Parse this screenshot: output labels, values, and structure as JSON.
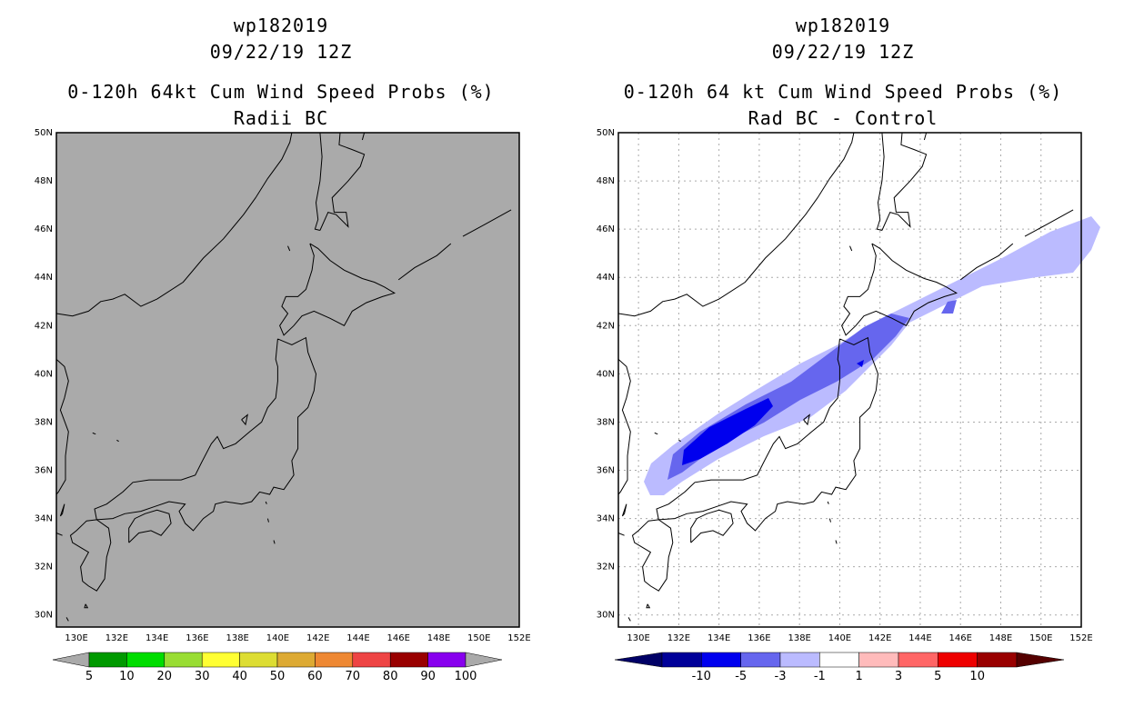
{
  "left_panel": {
    "title_id": "wp182019",
    "title_date": "09/22/19 12Z",
    "title_product": "0-120h 64kt Cum Wind Speed Probs (%)",
    "title_run": "Radii BC",
    "background_color": "#aaaaaa",
    "colorbar": {
      "labels": [
        "5",
        "10",
        "20",
        "30",
        "40",
        "50",
        "60",
        "70",
        "80",
        "90",
        "100"
      ],
      "colors": [
        "#009900",
        "#00dd00",
        "#99dd33",
        "#ffff33",
        "#dddd33",
        "#ddaa33",
        "#ee8833",
        "#ee4444",
        "#990000",
        "#8800ee"
      ]
    }
  },
  "right_panel": {
    "title_id": "wp182019",
    "title_date": "09/22/19 12Z",
    "title_product": "0-120h 64 kt Cum Wind Speed Probs (%)",
    "title_run": "Rad BC - Control",
    "background_color": "#ffffff",
    "colorbar": {
      "labels": [
        "-10",
        "-5",
        "-3",
        "-1",
        "1",
        "3",
        "5",
        "10"
      ],
      "colors": [
        "#000099",
        "#0000ee",
        "#6666ee",
        "#bbbbff",
        "#ffffff",
        "#ffbbbb",
        "#ff6666",
        "#ee0000",
        "#990000"
      ]
    },
    "difference_field": {
      "description_levels": [
        "-1 to -3",
        "-3 to -5",
        "-5 to -10"
      ],
      "level_colors": [
        "#bbbbff",
        "#6666ee",
        "#0000ee"
      ]
    }
  },
  "map": {
    "lon_labels": [
      "130E",
      "132E",
      "134E",
      "136E",
      "138E",
      "140E",
      "142E",
      "144E",
      "146E",
      "148E",
      "150E",
      "152E"
    ],
    "lat_labels": [
      "50N",
      "48N",
      "46N",
      "44N",
      "42N",
      "40N",
      "38N",
      "36N",
      "34N",
      "32N",
      "30N"
    ],
    "lon_values": [
      130,
      132,
      134,
      136,
      138,
      140,
      142,
      144,
      146,
      148,
      150,
      152
    ],
    "lat_values": [
      50,
      48,
      46,
      44,
      42,
      40,
      38,
      36,
      34,
      32,
      30
    ],
    "lon_range": [
      129,
      152
    ],
    "lat_range": [
      29.5,
      50
    ]
  }
}
